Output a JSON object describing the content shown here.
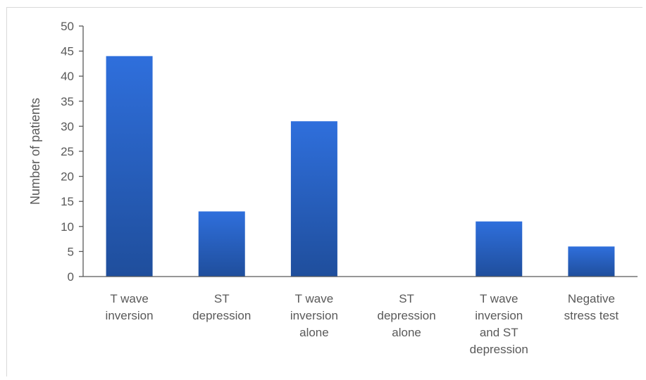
{
  "chart_data": {
    "type": "bar",
    "title": "",
    "xlabel": "",
    "ylabel": "Number of patients",
    "ylim": [
      0,
      50
    ],
    "yticks": [
      0,
      5,
      10,
      15,
      20,
      25,
      30,
      35,
      40,
      45,
      50
    ],
    "grid": false,
    "legend": "none",
    "categories": [
      [
        "T wave",
        "inversion"
      ],
      [
        "ST",
        "depression"
      ],
      [
        "T wave",
        "inversion",
        "alone"
      ],
      [
        "ST",
        "depression",
        "alone"
      ],
      [
        "T wave",
        "inversion",
        "and ST",
        "depression"
      ],
      [
        "Negative",
        "stress test"
      ]
    ],
    "values": [
      44,
      13,
      31,
      0,
      11,
      6
    ],
    "colors": {
      "bar_top": "#2f6fdc",
      "bar_bottom": "#1f4e9c",
      "axis": "#595959"
    }
  }
}
